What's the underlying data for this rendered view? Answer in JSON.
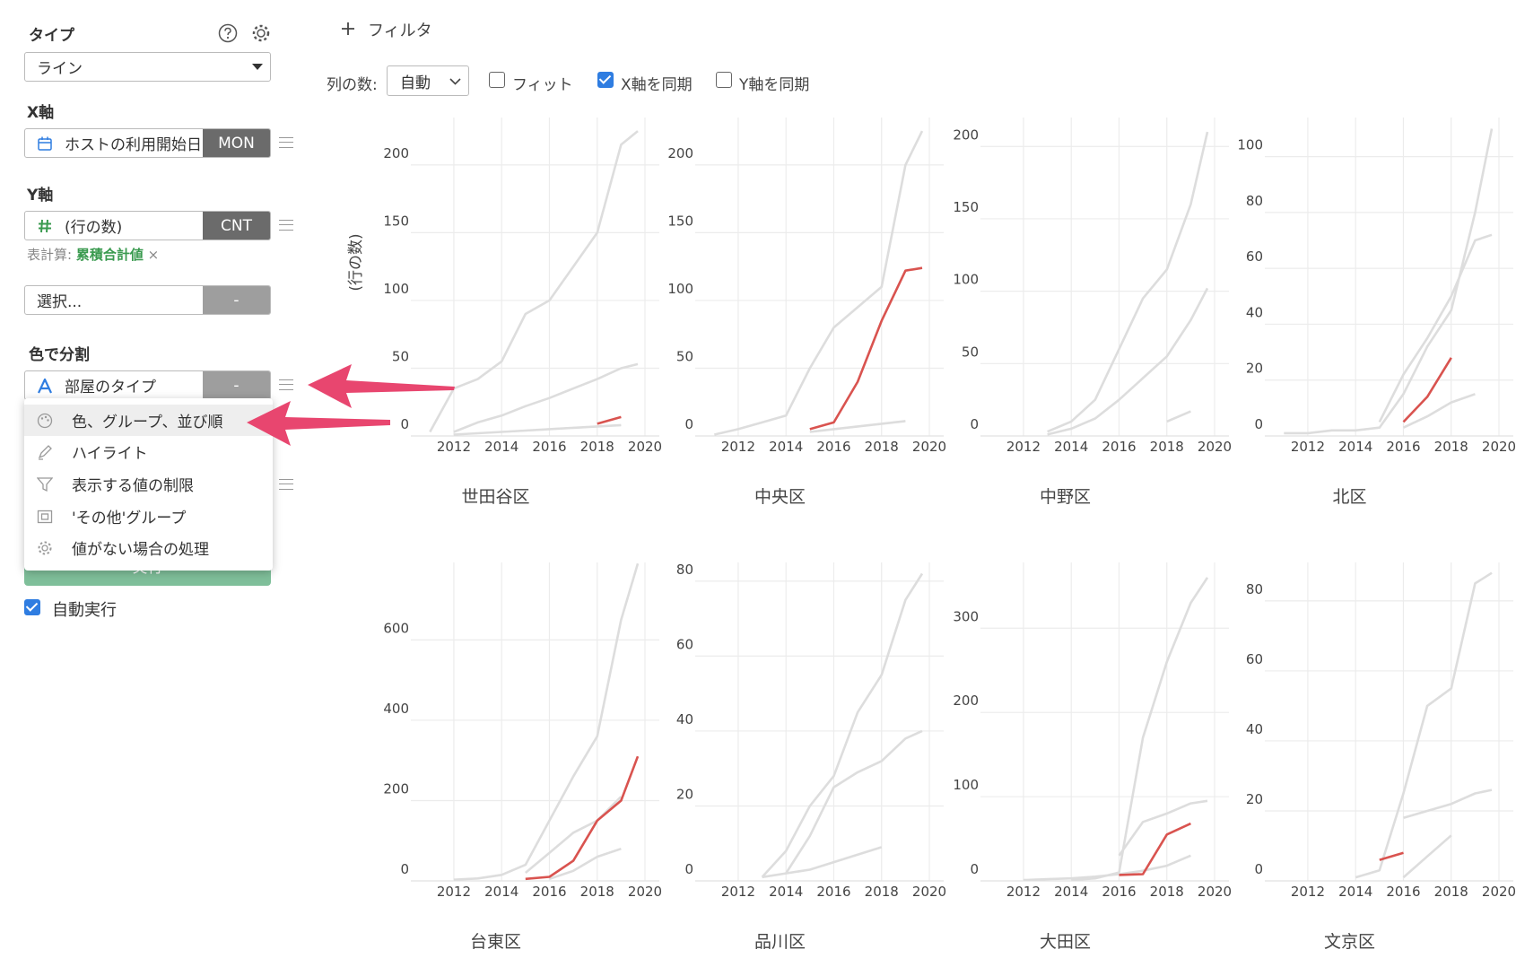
{
  "sidebar": {
    "type_label": "タイプ",
    "type_value": "ライン",
    "x_label": "X軸",
    "x_field": "ホストの利用開始日",
    "x_agg": "MON",
    "y_label": "Y軸",
    "y_field": "(行の数)",
    "y_agg": "CNT",
    "calc_label": "表計算:",
    "calc_value": "累積合計値",
    "calc_remove": "×",
    "extra_field": "選択...",
    "extra_agg": "-",
    "color_label": "色で分割",
    "color_field": "部屋のタイプ",
    "color_agg": "-",
    "menu": [
      "色、グループ、並び順",
      "ハイライト",
      "表示する値の制限",
      "'その他'グループ",
      "値がない場合の処理"
    ],
    "run": "実行",
    "auto_run": "自動実行",
    "auto_run_checked": true
  },
  "toolbar": {
    "filter": "フィルタ",
    "columns_label": "列の数:",
    "columns_value": "自動",
    "options": [
      {
        "label": "フィット",
        "checked": false
      },
      {
        "label": "X軸を同期",
        "checked": true
      },
      {
        "label": "Y軸を同期",
        "checked": false
      }
    ]
  },
  "chart_data": [
    {
      "type": "line",
      "title": "世田谷区",
      "y_label": "(行の数)",
      "x": [
        2011,
        2012,
        2013,
        2014,
        2015,
        2016,
        2017,
        2018,
        2019,
        2019.7
      ],
      "xlim": [
        2010.2,
        2020.6
      ],
      "xticks": [
        2012,
        2014,
        2016,
        2018,
        2020
      ],
      "ylim": [
        0,
        235
      ],
      "yticks": [
        0,
        50,
        100,
        150,
        200
      ],
      "grid": true,
      "series": [
        {
          "color": "#dddddd",
          "values": [
            3,
            35,
            42,
            55,
            90,
            100,
            125,
            150,
            215,
            225
          ]
        },
        {
          "color": "#dddddd",
          "values": [
            null,
            3,
            10,
            15,
            22,
            28,
            35,
            42,
            50,
            53
          ]
        },
        {
          "color": "#dddddd",
          "values": [
            null,
            1,
            2,
            3,
            4,
            5,
            6,
            7,
            8,
            null
          ]
        },
        {
          "color": "#d9534f",
          "values": [
            null,
            null,
            null,
            null,
            null,
            null,
            null,
            9,
            14,
            null
          ]
        }
      ]
    },
    {
      "type": "line",
      "title": "中央区",
      "x": [
        2011,
        2012,
        2013,
        2014,
        2015,
        2016,
        2017,
        2018,
        2019,
        2019.7
      ],
      "xlim": [
        2010.2,
        2020.6
      ],
      "xticks": [
        2012,
        2014,
        2016,
        2018,
        2020
      ],
      "ylim": [
        0,
        235
      ],
      "yticks": [
        0,
        50,
        100,
        150,
        200
      ],
      "grid": true,
      "series": [
        {
          "color": "#dddddd",
          "values": [
            1,
            5,
            10,
            15,
            50,
            80,
            95,
            110,
            200,
            225
          ]
        },
        {
          "color": "#dddddd",
          "values": [
            null,
            null,
            null,
            null,
            3,
            5,
            7,
            9,
            11,
            null
          ]
        },
        {
          "color": "#d9534f",
          "values": [
            null,
            null,
            null,
            null,
            5,
            10,
            40,
            85,
            122,
            124
          ]
        }
      ]
    },
    {
      "type": "line",
      "title": "中野区",
      "x": [
        2011,
        2012,
        2013,
        2014,
        2015,
        2016,
        2017,
        2018,
        2019,
        2019.7
      ],
      "xlim": [
        2010.2,
        2020.6
      ],
      "xticks": [
        2012,
        2014,
        2016,
        2018,
        2020
      ],
      "ylim": [
        0,
        220
      ],
      "yticks": [
        0,
        50,
        100,
        150,
        200
      ],
      "grid": true,
      "series": [
        {
          "color": "#dddddd",
          "values": [
            null,
            null,
            3,
            10,
            25,
            60,
            95,
            115,
            160,
            210
          ]
        },
        {
          "color": "#dddddd",
          "values": [
            null,
            null,
            1,
            5,
            12,
            25,
            40,
            55,
            80,
            102
          ]
        },
        {
          "color": "#dddddd",
          "values": [
            null,
            null,
            null,
            null,
            null,
            null,
            null,
            10,
            17,
            null
          ]
        }
      ]
    },
    {
      "type": "line",
      "title": "北区",
      "x": [
        2011,
        2012,
        2013,
        2014,
        2015,
        2016,
        2017,
        2018,
        2019,
        2019.7
      ],
      "xlim": [
        2010.2,
        2020.6
      ],
      "xticks": [
        2012,
        2014,
        2016,
        2018,
        2020
      ],
      "ylim": [
        0,
        114
      ],
      "yticks": [
        0,
        20,
        40,
        60,
        80,
        100
      ],
      "grid": true,
      "series": [
        {
          "color": "#dddddd",
          "values": [
            1,
            1,
            2,
            2,
            3,
            15,
            32,
            45,
            80,
            110
          ]
        },
        {
          "color": "#dddddd",
          "values": [
            null,
            null,
            null,
            null,
            5,
            22,
            35,
            50,
            70,
            72
          ]
        },
        {
          "color": "#dddddd",
          "values": [
            null,
            null,
            null,
            null,
            null,
            3,
            7,
            12,
            15,
            null
          ]
        },
        {
          "color": "#d9534f",
          "values": [
            null,
            null,
            null,
            null,
            null,
            5,
            14,
            28,
            null,
            null
          ]
        }
      ]
    },
    {
      "type": "line",
      "title": "台東区",
      "x": [
        2011,
        2012,
        2013,
        2014,
        2015,
        2016,
        2017,
        2018,
        2019,
        2019.7
      ],
      "xlim": [
        2010.2,
        2020.6
      ],
      "xticks": [
        2012,
        2014,
        2016,
        2018,
        2020
      ],
      "ylim": [
        0,
        793
      ],
      "yticks": [
        0,
        200,
        400,
        600
      ],
      "grid": true,
      "series": [
        {
          "color": "#dddddd",
          "values": [
            null,
            3,
            6,
            15,
            40,
            150,
            260,
            360,
            650,
            790
          ]
        },
        {
          "color": "#dddddd",
          "values": [
            null,
            null,
            null,
            null,
            20,
            70,
            120,
            150,
            210,
            null
          ]
        },
        {
          "color": "#dddddd",
          "values": [
            null,
            null,
            null,
            null,
            null,
            5,
            25,
            60,
            80,
            null
          ]
        },
        {
          "color": "#d9534f",
          "values": [
            null,
            null,
            null,
            null,
            5,
            10,
            50,
            150,
            200,
            310
          ]
        }
      ]
    },
    {
      "type": "line",
      "title": "品川区",
      "x": [
        2011,
        2012,
        2013,
        2014,
        2015,
        2016,
        2017,
        2018,
        2019,
        2019.7
      ],
      "xlim": [
        2010.2,
        2020.6
      ],
      "xticks": [
        2012,
        2014,
        2016,
        2018,
        2020
      ],
      "ylim": [
        0,
        85
      ],
      "yticks": [
        0,
        20,
        40,
        60,
        80
      ],
      "grid": true,
      "series": [
        {
          "color": "#dddddd",
          "values": [
            null,
            null,
            1,
            8,
            20,
            28,
            45,
            55,
            75,
            82
          ]
        },
        {
          "color": "#dddddd",
          "values": [
            null,
            null,
            null,
            2,
            12,
            25,
            29,
            32,
            38,
            40
          ]
        },
        {
          "color": "#dddddd",
          "values": [
            null,
            null,
            1,
            2,
            3,
            5,
            7,
            9,
            null,
            null
          ]
        }
      ]
    },
    {
      "type": "line",
      "title": "大田区",
      "x": [
        2011,
        2012,
        2013,
        2014,
        2015,
        2016,
        2017,
        2018,
        2019,
        2019.7
      ],
      "xlim": [
        2010.2,
        2020.6
      ],
      "xticks": [
        2012,
        2014,
        2016,
        2018,
        2020
      ],
      "ylim": [
        0,
        378
      ],
      "yticks": [
        0,
        100,
        200,
        300
      ],
      "grid": true,
      "series": [
        {
          "color": "#dddddd",
          "values": [
            null,
            null,
            null,
            1,
            3,
            10,
            170,
            260,
            330,
            360
          ]
        },
        {
          "color": "#dddddd",
          "values": [
            null,
            null,
            null,
            null,
            null,
            30,
            70,
            80,
            92,
            95
          ]
        },
        {
          "color": "#dddddd",
          "values": [
            null,
            1,
            2,
            3,
            5,
            8,
            12,
            18,
            30,
            null
          ]
        },
        {
          "color": "#d9534f",
          "values": [
            null,
            null,
            null,
            null,
            null,
            7,
            8,
            55,
            68,
            null
          ]
        }
      ]
    },
    {
      "type": "line",
      "title": "文京区",
      "x": [
        2011,
        2012,
        2013,
        2014,
        2015,
        2016,
        2017,
        2018,
        2019,
        2019.7
      ],
      "xlim": [
        2010.2,
        2020.6
      ],
      "xticks": [
        2012,
        2014,
        2016,
        2018,
        2020
      ],
      "ylim": [
        0,
        91
      ],
      "yticks": [
        0,
        20,
        40,
        60,
        80
      ],
      "grid": true,
      "series": [
        {
          "color": "#dddddd",
          "values": [
            null,
            null,
            null,
            1,
            3,
            25,
            50,
            55,
            85,
            88
          ]
        },
        {
          "color": "#dddddd",
          "values": [
            null,
            null,
            null,
            null,
            null,
            18,
            20,
            22,
            25,
            26
          ]
        },
        {
          "color": "#dddddd",
          "values": [
            null,
            null,
            null,
            null,
            null,
            1,
            7,
            13,
            null,
            null
          ]
        },
        {
          "color": "#d9534f",
          "values": [
            null,
            null,
            null,
            null,
            6,
            8,
            null,
            null,
            null,
            null
          ]
        }
      ]
    }
  ]
}
